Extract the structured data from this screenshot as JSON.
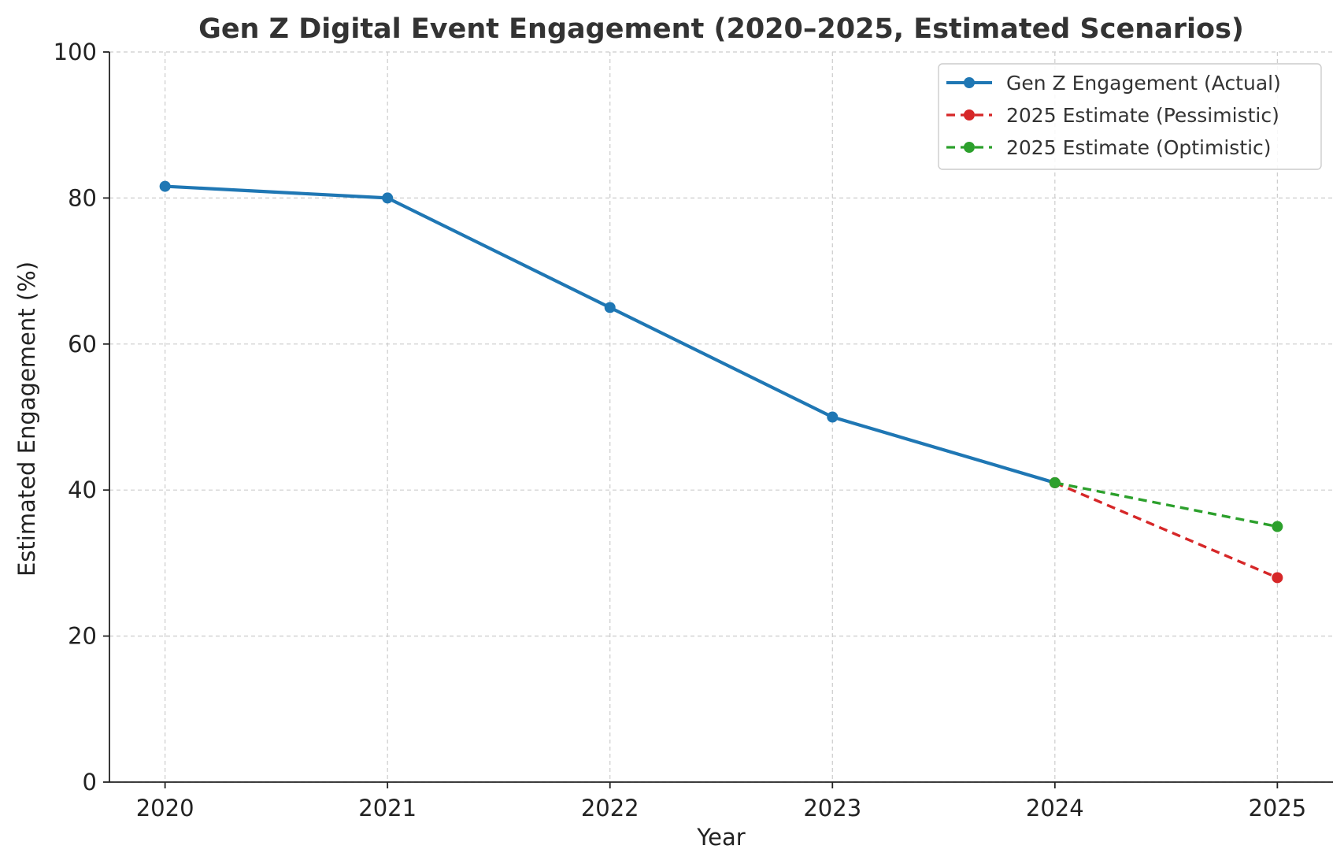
{
  "chart_data": {
    "type": "line",
    "title": "Gen Z Digital Event Engagement (2020–2025, Estimated Scenarios)",
    "xlabel": "Year",
    "ylabel": "Estimated Engagement (%)",
    "x_ticks": [
      "2020",
      "2021",
      "2022",
      "2023",
      "2024",
      "2025"
    ],
    "y_ticks": [
      "0",
      "20",
      "40",
      "60",
      "80",
      "100"
    ],
    "xlim": [
      2019.75,
      2025.25
    ],
    "ylim": [
      0,
      100
    ],
    "grid": true,
    "legend_position": "top-right",
    "series": [
      {
        "name": "Gen Z Engagement (Actual)",
        "color": "#1f77b4",
        "line_style": "solid",
        "x": [
          2020,
          2021,
          2022,
          2023,
          2024
        ],
        "y": [
          81.6,
          80,
          65,
          50,
          41
        ]
      },
      {
        "name": "2025 Estimate (Pessimistic)",
        "color": "#d62728",
        "line_style": "dashed",
        "x": [
          2024,
          2025
        ],
        "y": [
          41,
          28
        ]
      },
      {
        "name": "2025 Estimate (Optimistic)",
        "color": "#2ca02c",
        "line_style": "dashed",
        "x": [
          2024,
          2025
        ],
        "y": [
          41,
          35
        ]
      }
    ]
  }
}
